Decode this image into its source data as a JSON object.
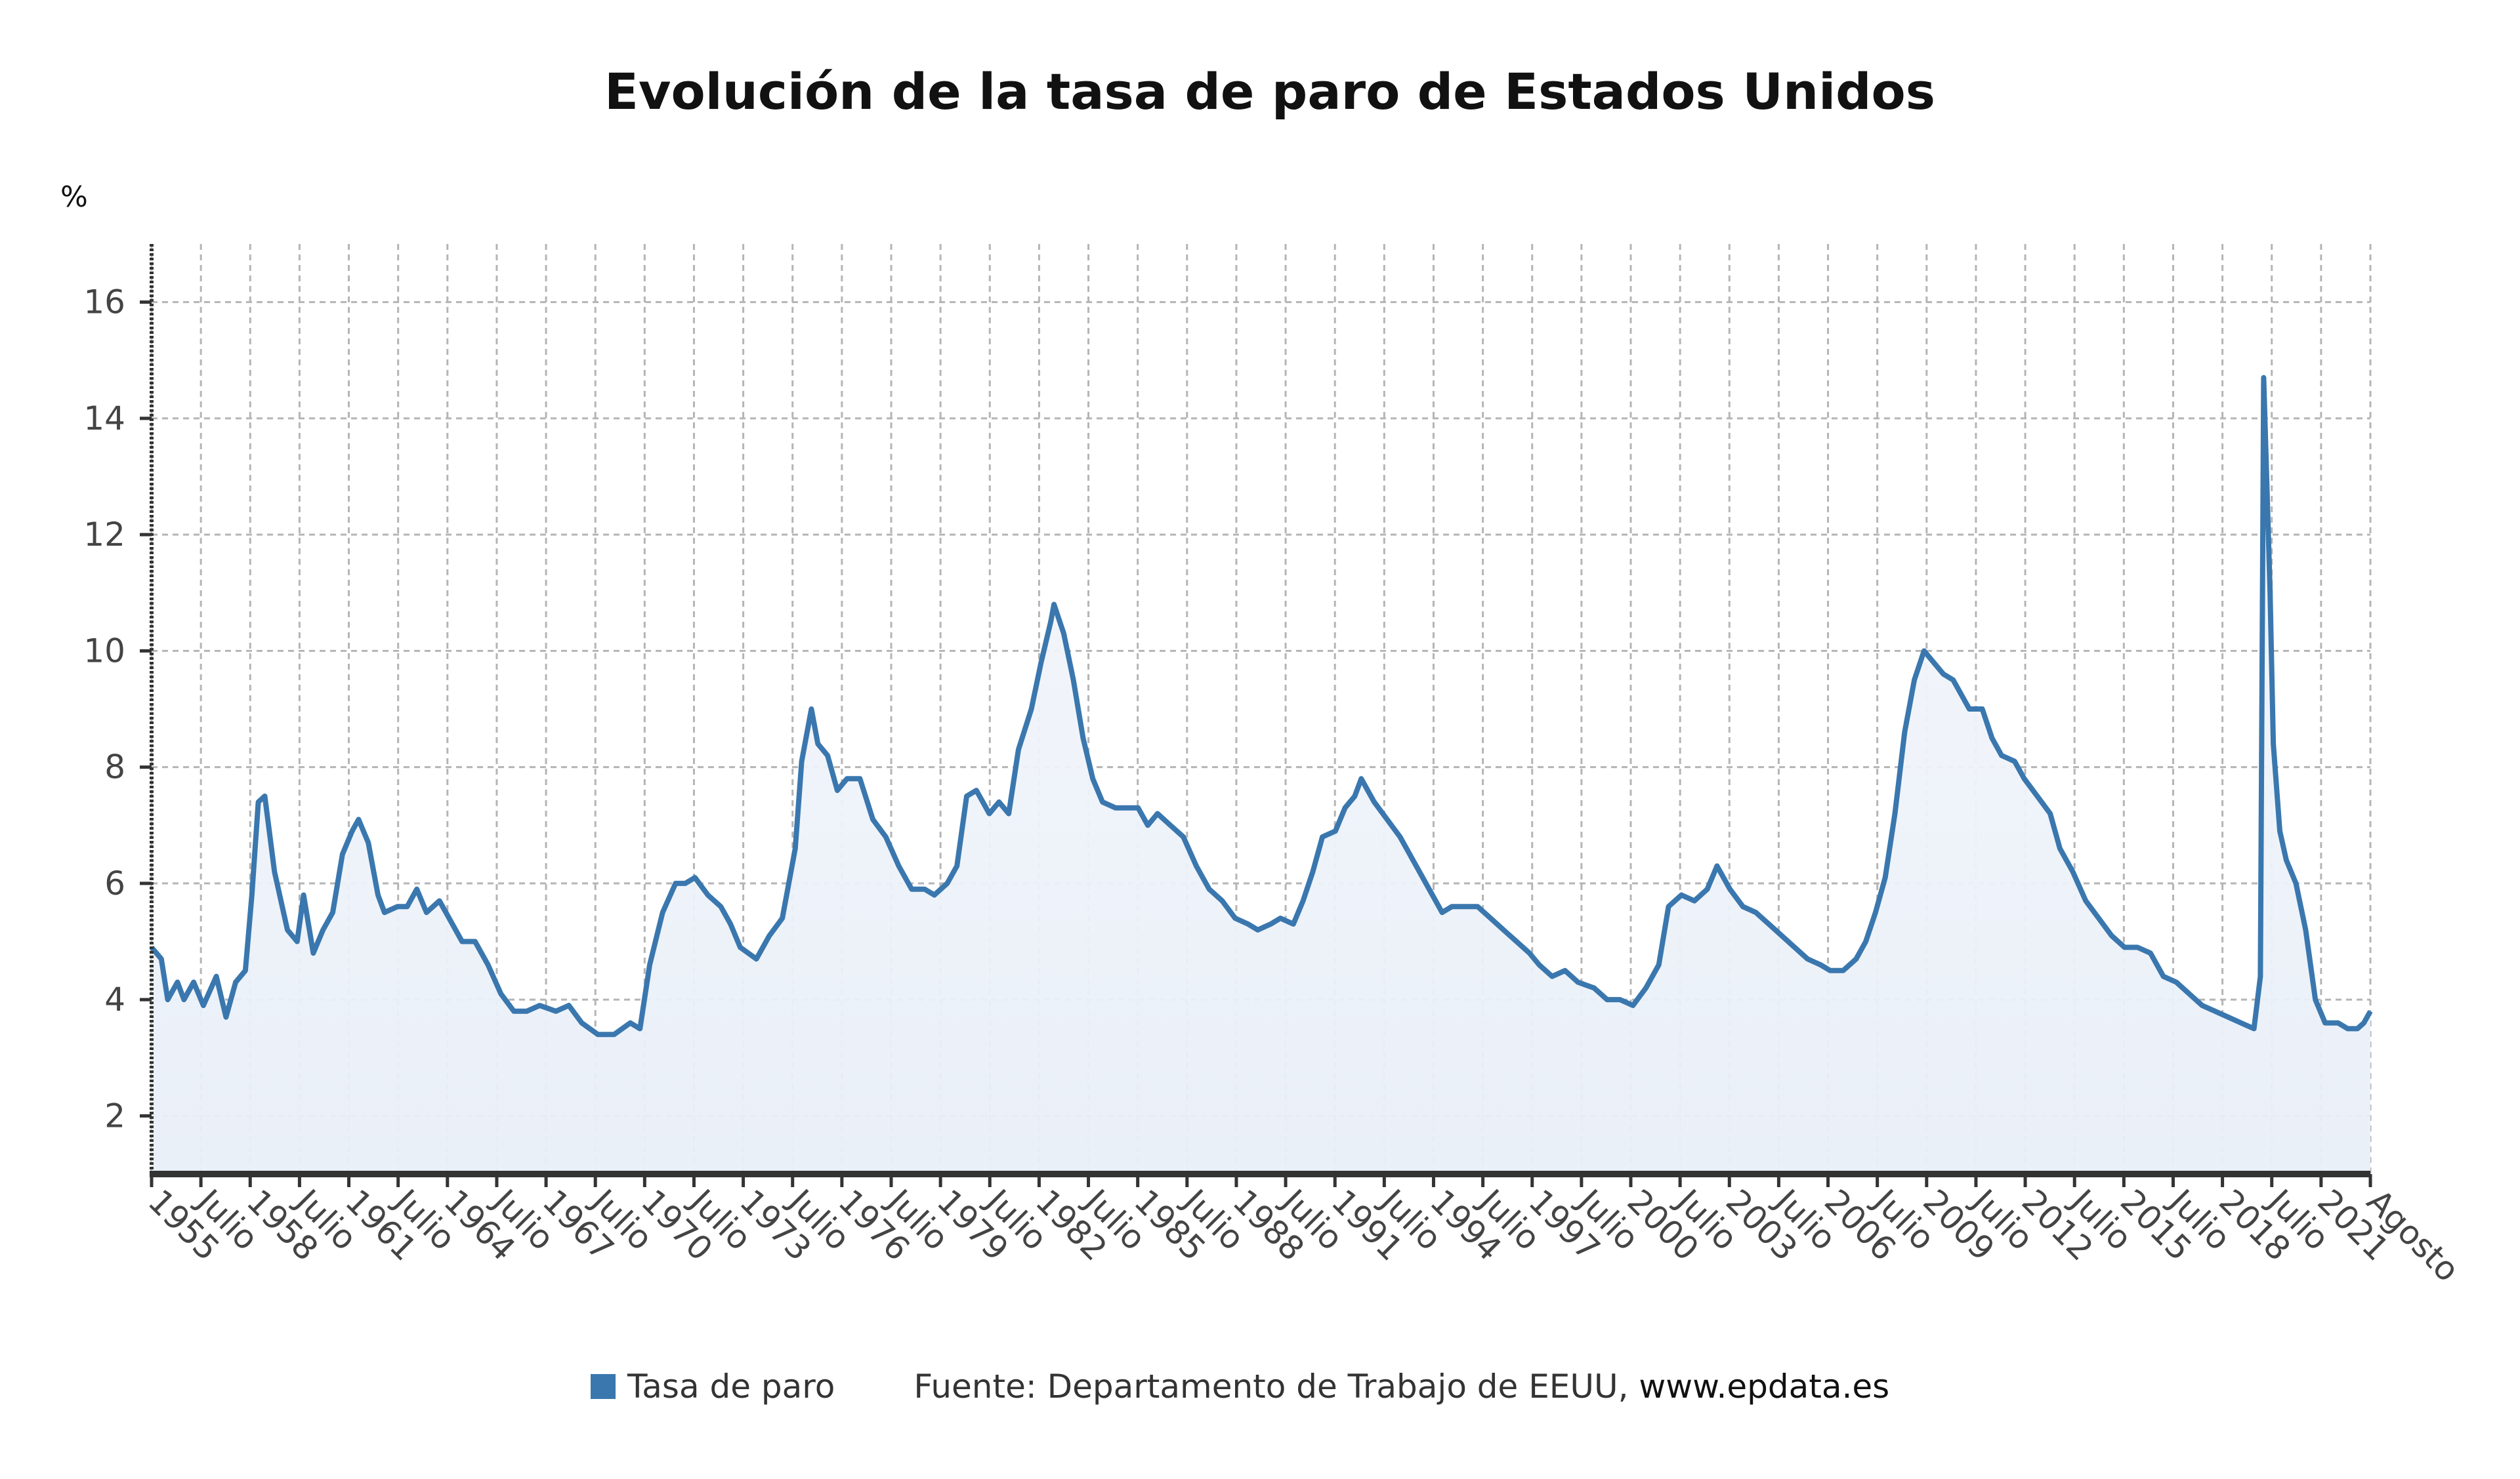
{
  "chart_data": {
    "type": "area",
    "title": "Evolución de la tasa de paro de Estados Unidos",
    "ylabel": "%",
    "xlabel": "",
    "ylim": [
      1,
      17
    ],
    "yticks": [
      2,
      4,
      6,
      8,
      10,
      12,
      14,
      16
    ],
    "grid": true,
    "xtick_labels": [
      "1955",
      "Julio",
      "1958",
      "Julio",
      "1961",
      "Julio",
      "1964",
      "Julio",
      "1967",
      "Julio",
      "1970",
      "Julio",
      "1973",
      "Julio",
      "1976",
      "Julio",
      "1979",
      "Julio",
      "1982",
      "Julio",
      "1985",
      "Julio",
      "1988",
      "Julio",
      "1991",
      "Julio",
      "1994",
      "Julio",
      "1997",
      "Julio",
      "2000",
      "Julio",
      "2003",
      "Julio",
      "2006",
      "Julio",
      "2009",
      "Julio",
      "2012",
      "Julio",
      "2015",
      "Julio",
      "2018",
      "Julio",
      "2021",
      "Agosto"
    ],
    "x_range": [
      1955.0,
      2023.6
    ],
    "series": [
      {
        "name": "Tasa de paro",
        "color": "#3a77ae",
        "points": [
          [
            1955.0,
            4.9
          ],
          [
            1955.3,
            4.7
          ],
          [
            1955.5,
            4.0
          ],
          [
            1955.8,
            4.3
          ],
          [
            1956.0,
            4.0
          ],
          [
            1956.3,
            4.3
          ],
          [
            1956.6,
            3.9
          ],
          [
            1957.0,
            4.4
          ],
          [
            1957.3,
            3.7
          ],
          [
            1957.6,
            4.3
          ],
          [
            1957.9,
            4.5
          ],
          [
            1958.1,
            5.8
          ],
          [
            1958.3,
            7.4
          ],
          [
            1958.5,
            7.5
          ],
          [
            1958.8,
            6.2
          ],
          [
            1959.2,
            5.2
          ],
          [
            1959.5,
            5.0
          ],
          [
            1959.7,
            5.8
          ],
          [
            1960.0,
            4.8
          ],
          [
            1960.3,
            5.2
          ],
          [
            1960.6,
            5.5
          ],
          [
            1960.9,
            6.5
          ],
          [
            1961.2,
            6.9
          ],
          [
            1961.4,
            7.1
          ],
          [
            1961.7,
            6.7
          ],
          [
            1962.0,
            5.8
          ],
          [
            1962.2,
            5.5
          ],
          [
            1962.6,
            5.6
          ],
          [
            1962.9,
            5.6
          ],
          [
            1963.2,
            5.9
          ],
          [
            1963.5,
            5.5
          ],
          [
            1963.9,
            5.7
          ],
          [
            1964.2,
            5.4
          ],
          [
            1964.6,
            5.0
          ],
          [
            1965.0,
            5.0
          ],
          [
            1965.4,
            4.6
          ],
          [
            1965.8,
            4.1
          ],
          [
            1966.2,
            3.8
          ],
          [
            1966.6,
            3.8
          ],
          [
            1967.0,
            3.9
          ],
          [
            1967.5,
            3.8
          ],
          [
            1967.9,
            3.9
          ],
          [
            1968.3,
            3.6
          ],
          [
            1968.8,
            3.4
          ],
          [
            1969.3,
            3.4
          ],
          [
            1969.8,
            3.6
          ],
          [
            1970.1,
            3.5
          ],
          [
            1970.4,
            4.6
          ],
          [
            1970.8,
            5.5
          ],
          [
            1971.2,
            6.0
          ],
          [
            1971.5,
            6.0
          ],
          [
            1971.8,
            6.1
          ],
          [
            1972.2,
            5.8
          ],
          [
            1972.6,
            5.6
          ],
          [
            1972.9,
            5.3
          ],
          [
            1973.2,
            4.9
          ],
          [
            1973.7,
            4.7
          ],
          [
            1974.1,
            5.1
          ],
          [
            1974.5,
            5.4
          ],
          [
            1974.9,
            6.6
          ],
          [
            1975.1,
            8.1
          ],
          [
            1975.4,
            9.0
          ],
          [
            1975.6,
            8.4
          ],
          [
            1975.9,
            8.2
          ],
          [
            1976.2,
            7.6
          ],
          [
            1976.5,
            7.8
          ],
          [
            1976.9,
            7.8
          ],
          [
            1977.3,
            7.1
          ],
          [
            1977.7,
            6.8
          ],
          [
            1978.1,
            6.3
          ],
          [
            1978.5,
            5.9
          ],
          [
            1978.9,
            5.9
          ],
          [
            1979.2,
            5.8
          ],
          [
            1979.6,
            6.0
          ],
          [
            1979.9,
            6.3
          ],
          [
            1980.2,
            7.5
          ],
          [
            1980.5,
            7.6
          ],
          [
            1980.9,
            7.2
          ],
          [
            1981.2,
            7.4
          ],
          [
            1981.5,
            7.2
          ],
          [
            1981.8,
            8.3
          ],
          [
            1982.2,
            9.0
          ],
          [
            1982.5,
            9.8
          ],
          [
            1982.8,
            10.5
          ],
          [
            1982.9,
            10.8
          ],
          [
            1983.2,
            10.3
          ],
          [
            1983.5,
            9.5
          ],
          [
            1983.8,
            8.5
          ],
          [
            1984.1,
            7.8
          ],
          [
            1984.4,
            7.4
          ],
          [
            1984.8,
            7.3
          ],
          [
            1985.2,
            7.3
          ],
          [
            1985.5,
            7.3
          ],
          [
            1985.8,
            7.0
          ],
          [
            1986.1,
            7.2
          ],
          [
            1986.5,
            7.0
          ],
          [
            1986.9,
            6.8
          ],
          [
            1987.3,
            6.3
          ],
          [
            1987.7,
            5.9
          ],
          [
            1988.1,
            5.7
          ],
          [
            1988.5,
            5.4
          ],
          [
            1988.9,
            5.3
          ],
          [
            1989.2,
            5.2
          ],
          [
            1989.6,
            5.3
          ],
          [
            1989.9,
            5.4
          ],
          [
            1990.3,
            5.3
          ],
          [
            1990.6,
            5.7
          ],
          [
            1990.9,
            6.2
          ],
          [
            1991.2,
            6.8
          ],
          [
            1991.6,
            6.9
          ],
          [
            1991.9,
            7.3
          ],
          [
            1992.2,
            7.5
          ],
          [
            1992.4,
            7.8
          ],
          [
            1992.8,
            7.4
          ],
          [
            1993.2,
            7.1
          ],
          [
            1993.6,
            6.8
          ],
          [
            1993.9,
            6.5
          ],
          [
            1994.3,
            6.1
          ],
          [
            1994.6,
            5.8
          ],
          [
            1994.9,
            5.5
          ],
          [
            1995.2,
            5.6
          ],
          [
            1995.6,
            5.6
          ],
          [
            1996.0,
            5.6
          ],
          [
            1996.4,
            5.4
          ],
          [
            1996.8,
            5.2
          ],
          [
            1997.2,
            5.0
          ],
          [
            1997.6,
            4.8
          ],
          [
            1997.9,
            4.6
          ],
          [
            1998.3,
            4.4
          ],
          [
            1998.7,
            4.5
          ],
          [
            1999.1,
            4.3
          ],
          [
            1999.6,
            4.2
          ],
          [
            2000.0,
            4.0
          ],
          [
            2000.4,
            4.0
          ],
          [
            2000.8,
            3.9
          ],
          [
            2001.2,
            4.2
          ],
          [
            2001.6,
            4.6
          ],
          [
            2001.9,
            5.6
          ],
          [
            2002.3,
            5.8
          ],
          [
            2002.7,
            5.7
          ],
          [
            2003.1,
            5.9
          ],
          [
            2003.4,
            6.3
          ],
          [
            2003.8,
            5.9
          ],
          [
            2004.2,
            5.6
          ],
          [
            2004.6,
            5.5
          ],
          [
            2005.0,
            5.3
          ],
          [
            2005.4,
            5.1
          ],
          [
            2005.8,
            4.9
          ],
          [
            2006.2,
            4.7
          ],
          [
            2006.6,
            4.6
          ],
          [
            2006.9,
            4.5
          ],
          [
            2007.3,
            4.5
          ],
          [
            2007.7,
            4.7
          ],
          [
            2008.0,
            5.0
          ],
          [
            2008.3,
            5.5
          ],
          [
            2008.6,
            6.1
          ],
          [
            2008.9,
            7.2
          ],
          [
            2009.2,
            8.6
          ],
          [
            2009.5,
            9.5
          ],
          [
            2009.8,
            10.0
          ],
          [
            2010.1,
            9.8
          ],
          [
            2010.4,
            9.6
          ],
          [
            2010.7,
            9.5
          ],
          [
            2010.9,
            9.3
          ],
          [
            2011.2,
            9.0
          ],
          [
            2011.6,
            9.0
          ],
          [
            2011.9,
            8.5
          ],
          [
            2012.2,
            8.2
          ],
          [
            2012.6,
            8.1
          ],
          [
            2012.9,
            7.8
          ],
          [
            2013.3,
            7.5
          ],
          [
            2013.7,
            7.2
          ],
          [
            2014.0,
            6.6
          ],
          [
            2014.4,
            6.2
          ],
          [
            2014.8,
            5.7
          ],
          [
            2015.2,
            5.4
          ],
          [
            2015.6,
            5.1
          ],
          [
            2016.0,
            4.9
          ],
          [
            2016.4,
            4.9
          ],
          [
            2016.8,
            4.8
          ],
          [
            2017.2,
            4.4
          ],
          [
            2017.6,
            4.3
          ],
          [
            2018.0,
            4.1
          ],
          [
            2018.4,
            3.9
          ],
          [
            2018.8,
            3.8
          ],
          [
            2019.2,
            3.7
          ],
          [
            2019.6,
            3.6
          ],
          [
            2020.0,
            3.5
          ],
          [
            2020.2,
            4.4
          ],
          [
            2020.3,
            14.7
          ],
          [
            2020.5,
            11.0
          ],
          [
            2020.6,
            8.4
          ],
          [
            2020.8,
            6.9
          ],
          [
            2021.0,
            6.4
          ],
          [
            2021.3,
            6.0
          ],
          [
            2021.6,
            5.2
          ],
          [
            2021.9,
            4.0
          ],
          [
            2022.2,
            3.6
          ],
          [
            2022.6,
            3.6
          ],
          [
            2022.9,
            3.5
          ],
          [
            2023.2,
            3.5
          ],
          [
            2023.4,
            3.6
          ],
          [
            2023.6,
            3.8
          ]
        ]
      }
    ],
    "legend": {
      "position": "bottom-center",
      "label": "Tasa de paro"
    },
    "source": "Fuente: Departamento de Trabajo de EEUU,",
    "source_site": "www.epdata.es"
  }
}
